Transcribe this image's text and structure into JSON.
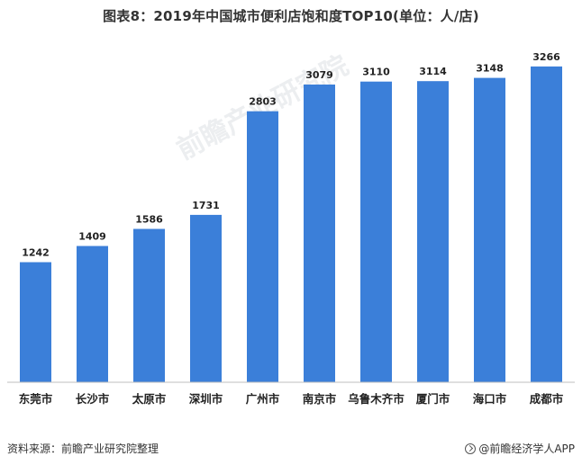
{
  "chart_data": {
    "type": "bar",
    "title": "图表8：2019年中国城市便利店饱和度TOP10(单位：人/店)",
    "categories": [
      "东莞市",
      "长沙市",
      "太原市",
      "深圳市",
      "广州市",
      "南京市",
      "乌鲁木齐市",
      "厦门市",
      "海口市",
      "成都市"
    ],
    "values": [
      1242,
      1409,
      1586,
      1731,
      2803,
      3079,
      3110,
      3114,
      3148,
      3266
    ],
    "ylim": [
      0,
      3500
    ],
    "grid": false,
    "bar_color": "#3b7fd9",
    "axis_color": "#bfbfbf"
  },
  "footer": {
    "source": "资料来源：前瞻产业研究院整理",
    "brand": "@前瞻经济学人APP",
    "brand_icon": "compass-icon"
  },
  "watermark": "前瞻产业研究院"
}
